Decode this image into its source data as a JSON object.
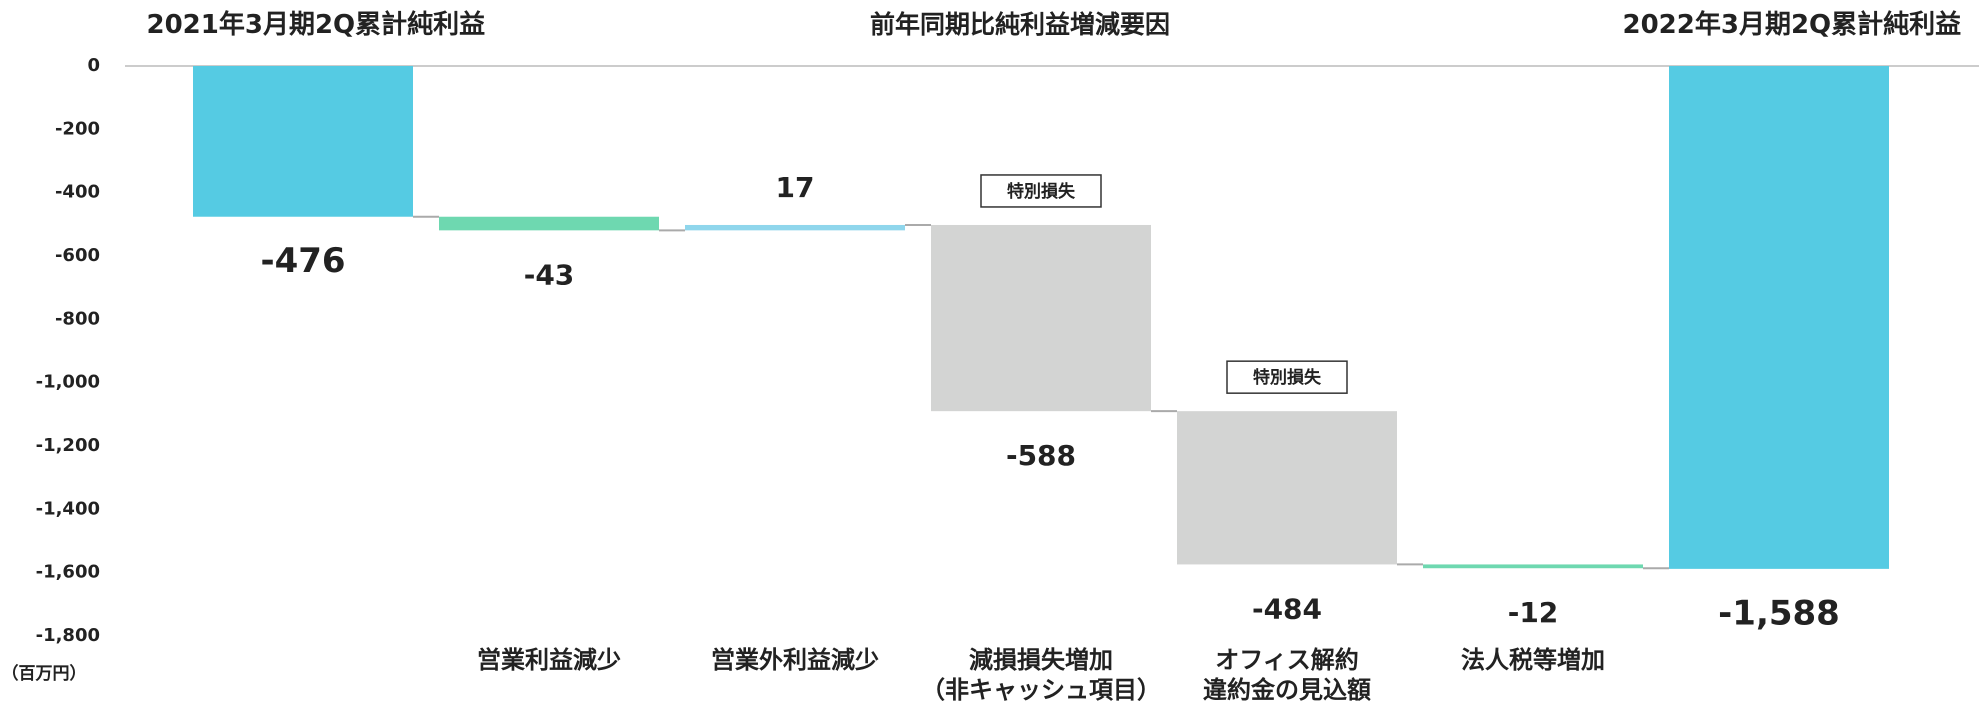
{
  "chart_data": {
    "type": "waterfall",
    "title": "前年同期比純利益増減要因",
    "unit": "（百万円）",
    "categories": [
      "2021年3月期2Q累計純利益",
      "営業利益減少",
      "営業外利益減少",
      "減損損失増加\n（非キャッシュ項目）",
      "オフィス解約\n違約金の見込額",
      "法人税等増加",
      "2022年3月期2Q累計純利益"
    ],
    "kinds": [
      "total",
      "delta",
      "delta",
      "delta",
      "delta",
      "delta",
      "total"
    ],
    "values": [
      -476,
      -43,
      17,
      -588,
      -484,
      -12,
      -1588
    ],
    "value_labels": [
      "-476",
      "-43",
      "17",
      "-588",
      "-484",
      "-12",
      "-1,588"
    ],
    "colors": [
      "#55cbe3",
      "#6ed8b0",
      "#8fd6ec",
      "#d3d4d3",
      "#d3d4d3",
      "#6ed8b0",
      "#55cbe3"
    ],
    "annotations": [
      {
        "text": "特別損失",
        "index": 3
      },
      {
        "text": "特別損失",
        "index": 4
      }
    ],
    "ylim": [
      -1800,
      0
    ],
    "yticks": [
      0,
      -200,
      -400,
      -600,
      -800,
      {
        "value": -1000,
        "label": "-1,000"
      },
      {
        "value": -1200,
        "label": "-1,200"
      },
      {
        "value": -1400,
        "label": "-1,400"
      },
      {
        "value": -1600,
        "label": "-1,600"
      },
      {
        "value": -1800,
        "label": "-1,800"
      }
    ],
    "grid": false
  }
}
